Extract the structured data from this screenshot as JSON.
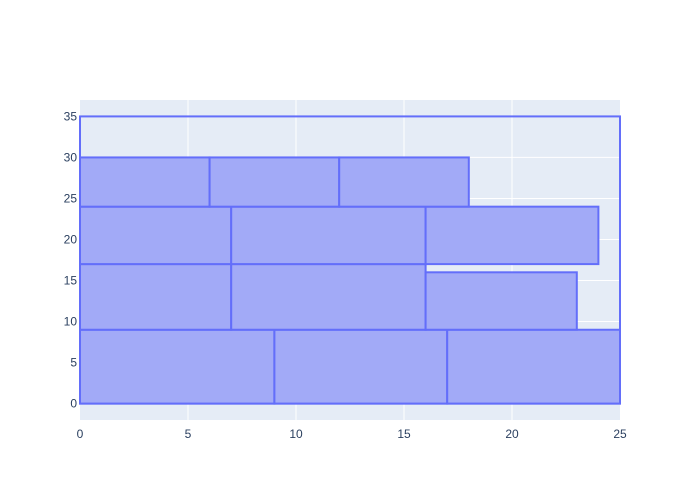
{
  "chart_data": {
    "type": "rectangles",
    "xlim": [
      0,
      25
    ],
    "ylim": [
      -2,
      37
    ],
    "xticks": [
      "0",
      "5",
      "10",
      "15",
      "20",
      "25"
    ],
    "yticks": [
      "0",
      "5",
      "10",
      "15",
      "20",
      "25",
      "30",
      "35"
    ],
    "grid": true,
    "legend": "none",
    "colors": {
      "plot_bg": "#e5ecf6",
      "grid": "#ffffff",
      "fill": "#a2aaf7",
      "stroke": "#636efa",
      "tick_text": "#2a3f5f"
    },
    "rects": [
      {
        "x0": 0,
        "x1": 9,
        "y0": 0,
        "y1": 9
      },
      {
        "x0": 9,
        "x1": 17,
        "y0": 0,
        "y1": 9
      },
      {
        "x0": 17,
        "x1": 25,
        "y0": 0,
        "y1": 9
      },
      {
        "x0": 0,
        "x1": 7,
        "y0": 9,
        "y1": 17
      },
      {
        "x0": 7,
        "x1": 16,
        "y0": 9,
        "y1": 17
      },
      {
        "x0": 16,
        "x1": 23,
        "y0": 9,
        "y1": 16
      },
      {
        "x0": 0,
        "x1": 7,
        "y0": 17,
        "y1": 24
      },
      {
        "x0": 7,
        "x1": 16,
        "y0": 17,
        "y1": 24
      },
      {
        "x0": 16,
        "x1": 24,
        "y0": 17,
        "y1": 24
      },
      {
        "x0": 0,
        "x1": 6,
        "y0": 24,
        "y1": 30
      },
      {
        "x0": 6,
        "x1": 12,
        "y0": 24,
        "y1": 30
      },
      {
        "x0": 12,
        "x1": 18,
        "y0": 24,
        "y1": 30
      }
    ],
    "outline_rect": {
      "x0": 0,
      "x1": 25,
      "y0": 0,
      "y1": 35
    }
  }
}
